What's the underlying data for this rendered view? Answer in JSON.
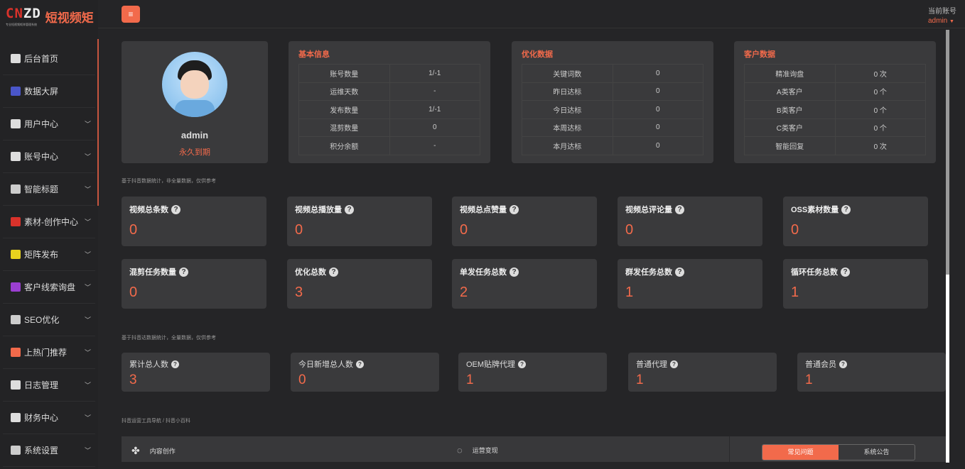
{
  "logo": {
    "mark_red": "CN",
    "mark_white": "ZD",
    "brand": "短视频矩",
    "tagline": "专业短视频矩阵管理系统"
  },
  "sidebar": {
    "items": [
      {
        "label": "后台首页",
        "icon": "grid-icon",
        "color": "#dddddd",
        "chevron": false
      },
      {
        "label": "数据大屏",
        "icon": "chart-icon",
        "color": "#4a56c9",
        "chevron": false
      },
      {
        "label": "用户中心",
        "icon": "user-icon",
        "color": "#dddddd",
        "chevron": true
      },
      {
        "label": "账号中心",
        "icon": "id-card-icon",
        "color": "#dddddd",
        "chevron": true
      },
      {
        "label": "智能标题",
        "icon": "title-icon",
        "color": "#cccccc",
        "chevron": true
      },
      {
        "label": "素材-创作中心",
        "icon": "video-icon",
        "color": "#d9322b",
        "chevron": true
      },
      {
        "label": "矩阵发布",
        "icon": "camera-icon",
        "color": "#e8d21e",
        "chevron": true
      },
      {
        "label": "客户线索询盘",
        "icon": "folder-icon",
        "color": "#9b3fd1",
        "chevron": true
      },
      {
        "label": "SEO优化",
        "icon": "seo-icon",
        "color": "#cccccc",
        "chevron": true
      },
      {
        "label": "上热门推荐",
        "icon": "fire-icon",
        "color": "#f26a4b",
        "chevron": true
      },
      {
        "label": "日志管理",
        "icon": "log-icon",
        "color": "#dddddd",
        "chevron": true
      },
      {
        "label": "财务中心",
        "icon": "yuan-icon",
        "color": "#dddddd",
        "chevron": true
      },
      {
        "label": "系统设置",
        "icon": "settings-icon",
        "color": "#cccccc",
        "chevron": true
      }
    ]
  },
  "header": {
    "menu_icon": "≡",
    "account_label": "当前账号",
    "account_name": "admin"
  },
  "profile": {
    "name": "admin",
    "expiry": "永久到期"
  },
  "panels": [
    {
      "title": "基本信息",
      "rows": [
        [
          "账号数量",
          "1/-1"
        ],
        [
          "运维天数",
          "-"
        ],
        [
          "发布数量",
          "1/-1"
        ],
        [
          "混剪数量",
          "0"
        ],
        [
          "积分余额",
          "-"
        ]
      ]
    },
    {
      "title": "优化数据",
      "rows": [
        [
          "关键词数",
          "0"
        ],
        [
          "昨日达标",
          "0"
        ],
        [
          "今日达标",
          "0"
        ],
        [
          "本周达标",
          "0"
        ],
        [
          "本月达标",
          "0"
        ]
      ]
    },
    {
      "title": "客户数据",
      "rows": [
        [
          "精准询盘",
          "0 次"
        ],
        [
          "A类客户",
          "0 个"
        ],
        [
          "B类客户",
          "0 个"
        ],
        [
          "C类客户",
          "0 个"
        ],
        [
          "智能回复",
          "0 次"
        ]
      ]
    }
  ],
  "note1": "基于抖音数据统计，非全量数据，仅供参考",
  "stats": [
    {
      "label": "视频总条数",
      "value": "0"
    },
    {
      "label": "视频总播放量",
      "value": "0"
    },
    {
      "label": "视频总点赞量",
      "value": "0"
    },
    {
      "label": "视频总评论量",
      "value": "0"
    },
    {
      "label": "OSS素材数量",
      "value": "0"
    },
    {
      "label": "混剪任务数量",
      "value": "0"
    },
    {
      "label": "优化总数",
      "value": "3"
    },
    {
      "label": "单发任务总数",
      "value": "2"
    },
    {
      "label": "群发任务总数",
      "value": "1"
    },
    {
      "label": "循环任务总数",
      "value": "1"
    }
  ],
  "note2": "基于抖音达数据统计，全量数据，仅供参考",
  "users": [
    {
      "label": "累计总人数",
      "value": "3"
    },
    {
      "label": "今日新增总人数",
      "value": "0"
    },
    {
      "label": "OEM贴牌代理",
      "value": "1"
    },
    {
      "label": "普通代理",
      "value": "1"
    },
    {
      "label": "普通会员",
      "value": "1"
    }
  ],
  "note3": "抖音运营工具导航 / 抖音小百科",
  "bottom": {
    "content_label": "内容创作",
    "ops_label": "运营变现",
    "tabs": [
      {
        "label": "常见问题",
        "active": true
      },
      {
        "label": "系统公告",
        "active": false
      }
    ]
  },
  "colors": {
    "accent": "#f26a4b",
    "background": "#252527",
    "card": "#3a3a3c"
  }
}
